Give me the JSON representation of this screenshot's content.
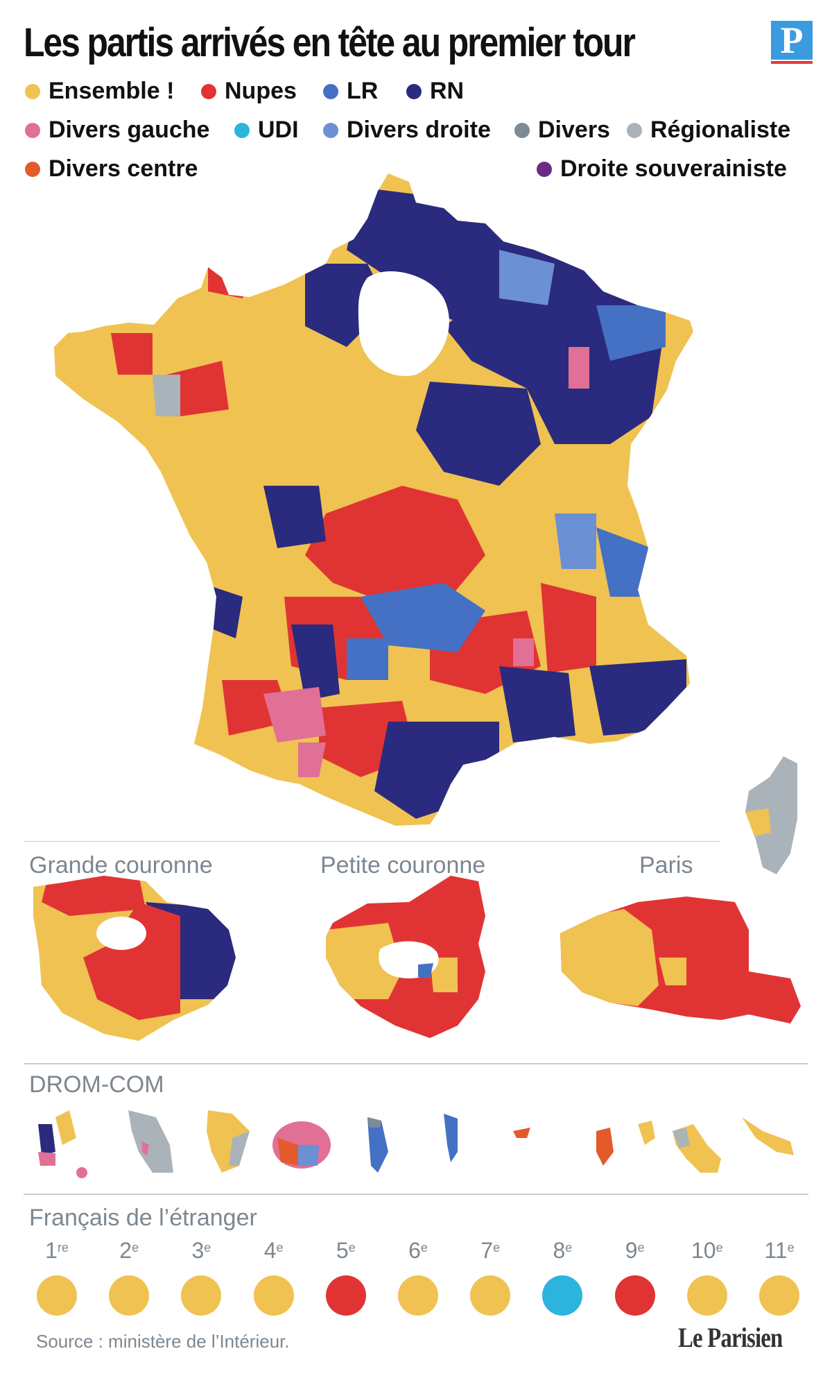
{
  "header": {
    "title": "Les partis arrivés en tête au premier tour",
    "logo_letter": "P"
  },
  "colors": {
    "ensemble": "#f0c251",
    "nupes": "#e03434",
    "lr": "#4471c4",
    "rn": "#2a2a7e",
    "divers_gauche": "#e07096",
    "udi": "#2cb4dc",
    "divers_droite": "#6b90d4",
    "divers": "#7d8b95",
    "regionaliste": "#aab3b9",
    "divers_centre": "#e55a2b",
    "droite_souverainiste": "#6a2a86"
  },
  "legend": [
    {
      "key": "ensemble",
      "label": "Ensemble !"
    },
    {
      "key": "nupes",
      "label": "Nupes"
    },
    {
      "key": "lr",
      "label": "LR"
    },
    {
      "key": "rn",
      "label": "RN"
    },
    {
      "key": "divers_gauche",
      "label": "Divers gauche"
    },
    {
      "key": "udi",
      "label": "UDI"
    },
    {
      "key": "divers_droite",
      "label": "Divers droite"
    },
    {
      "key": "divers",
      "label": "Divers"
    },
    {
      "key": "regionaliste",
      "label": "Régionaliste"
    },
    {
      "key": "divers_centre",
      "label": "Divers centre"
    },
    {
      "key": "droite_souverainiste",
      "label": "Droite souverainiste"
    }
  ],
  "sections": {
    "grande_couronne": "Grande couronne",
    "petite_couronne": "Petite couronne",
    "paris": "Paris",
    "drom_com": "DROM-COM",
    "etranger": "Français de l’étranger"
  },
  "abroad": [
    {
      "num": "1",
      "sup": "re",
      "key": "ensemble"
    },
    {
      "num": "2",
      "sup": "e",
      "key": "ensemble"
    },
    {
      "num": "3",
      "sup": "e",
      "key": "ensemble"
    },
    {
      "num": "4",
      "sup": "e",
      "key": "ensemble"
    },
    {
      "num": "5",
      "sup": "e",
      "key": "nupes"
    },
    {
      "num": "6",
      "sup": "e",
      "key": "ensemble"
    },
    {
      "num": "7",
      "sup": "e",
      "key": "ensemble"
    },
    {
      "num": "8",
      "sup": "e",
      "key": "udi"
    },
    {
      "num": "9",
      "sup": "e",
      "key": "nupes"
    },
    {
      "num": "10",
      "sup": "e",
      "key": "ensemble"
    },
    {
      "num": "11",
      "sup": "e",
      "key": "ensemble"
    }
  ],
  "footer": {
    "source": "Source : ministère de l’Intérieur.",
    "brand": "Le Parisien"
  }
}
